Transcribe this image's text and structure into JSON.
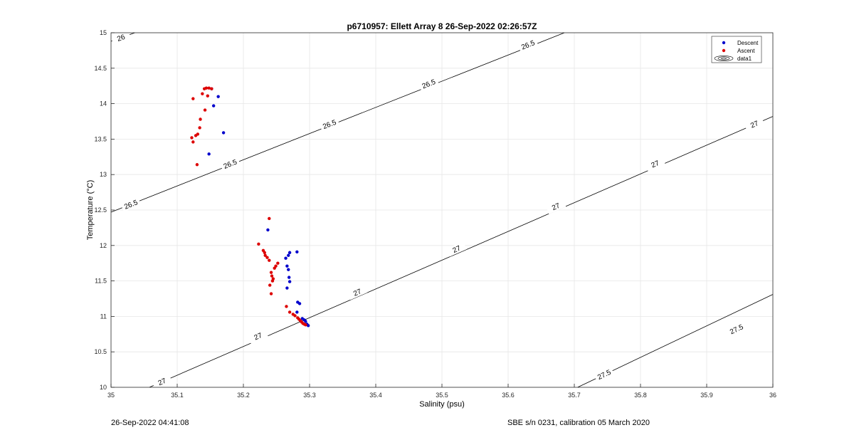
{
  "footer": {
    "left": "26-Sep-2022 04:41:08",
    "right": "SBE s/n 0231, calibration 05 March 2020"
  },
  "colors": {
    "descent": "#0000cc",
    "ascent": "#dd0000",
    "contour": "#000000",
    "grid": "#e6e6e6"
  },
  "chart_data": {
    "type": "scatter",
    "title": "p6710957: Ellett Array 8 26-Sep-2022 02:26:57Z",
    "xlabel": "Salinity (psu)",
    "ylabel": "Temperature (°C)",
    "xlim": [
      35,
      36
    ],
    "ylim": [
      10,
      15
    ],
    "grid": true,
    "legend_position": "top-right",
    "x_ticks": [
      "35",
      "35.1",
      "35.2",
      "35.3",
      "35.4",
      "35.5",
      "35.6",
      "35.7",
      "35.8",
      "35.9",
      "36"
    ],
    "y_ticks": [
      "10",
      "10.5",
      "11",
      "11.5",
      "12",
      "12.5",
      "13",
      "13.5",
      "14",
      "14.5",
      "15"
    ],
    "legend": [
      "Descent",
      "Ascent",
      "data1"
    ],
    "series": [
      {
        "name": "Descent",
        "color": "#0000cc",
        "points": [
          [
            35.152,
            14.21
          ],
          [
            35.162,
            14.1
          ],
          [
            35.155,
            13.97
          ],
          [
            35.17,
            13.59
          ],
          [
            35.148,
            13.29
          ],
          [
            35.237,
            12.22
          ],
          [
            35.281,
            11.91
          ],
          [
            35.27,
            11.9
          ],
          [
            35.268,
            11.86
          ],
          [
            35.264,
            11.82
          ],
          [
            35.266,
            11.71
          ],
          [
            35.268,
            11.66
          ],
          [
            35.269,
            11.55
          ],
          [
            35.27,
            11.49
          ],
          [
            35.266,
            11.4
          ],
          [
            35.282,
            11.2
          ],
          [
            35.285,
            11.18
          ],
          [
            35.281,
            11.06
          ],
          [
            35.289,
            10.97
          ],
          [
            35.292,
            10.95
          ],
          [
            35.294,
            10.93
          ],
          [
            35.296,
            10.89
          ],
          [
            35.298,
            10.87
          ]
        ]
      },
      {
        "name": "Ascent",
        "color": "#dd0000",
        "points": [
          [
            35.141,
            14.21
          ],
          [
            35.144,
            14.22
          ],
          [
            35.148,
            14.22
          ],
          [
            35.152,
            14.21
          ],
          [
            35.146,
            14.11
          ],
          [
            35.138,
            14.14
          ],
          [
            35.124,
            14.07
          ],
          [
            35.142,
            13.91
          ],
          [
            35.135,
            13.78
          ],
          [
            35.134,
            13.66
          ],
          [
            35.131,
            13.57
          ],
          [
            35.128,
            13.55
          ],
          [
            35.122,
            13.52
          ],
          [
            35.124,
            13.46
          ],
          [
            35.13,
            13.14
          ],
          [
            35.239,
            12.38
          ],
          [
            35.223,
            12.02
          ],
          [
            35.23,
            11.93
          ],
          [
            35.232,
            11.9
          ],
          [
            35.233,
            11.86
          ],
          [
            35.236,
            11.83
          ],
          [
            35.239,
            11.79
          ],
          [
            35.252,
            11.75
          ],
          [
            35.249,
            11.71
          ],
          [
            35.247,
            11.68
          ],
          [
            35.242,
            11.62
          ],
          [
            35.243,
            11.57
          ],
          [
            35.245,
            11.53
          ],
          [
            35.244,
            11.5
          ],
          [
            35.24,
            11.44
          ],
          [
            35.242,
            11.32
          ],
          [
            35.265,
            11.14
          ],
          [
            35.27,
            11.06
          ],
          [
            35.275,
            11.03
          ],
          [
            35.278,
            11.01
          ],
          [
            35.282,
            10.98
          ],
          [
            35.284,
            10.96
          ],
          [
            35.286,
            10.94
          ],
          [
            35.288,
            10.92
          ],
          [
            35.29,
            10.9
          ],
          [
            35.292,
            10.89
          ],
          [
            35.294,
            10.88
          ]
        ]
      }
    ],
    "contours": [
      {
        "label": "26",
        "line": [
          [
            35.0,
            14.88
          ],
          [
            35.036,
            15.0
          ]
        ],
        "label_positions": [
          [
            35.015,
            14.93
          ]
        ]
      },
      {
        "label": "26.5",
        "line": [
          [
            35.0,
            12.47
          ],
          [
            35.685,
            15.0
          ]
        ],
        "label_positions": [
          [
            35.03,
            12.58
          ],
          [
            35.18,
            13.15
          ],
          [
            35.33,
            13.71
          ],
          [
            35.48,
            14.28
          ],
          [
            35.63,
            14.83
          ]
        ]
      },
      {
        "label": "27",
        "line": [
          [
            35.058,
            10.0
          ],
          [
            36.0,
            13.82
          ]
        ],
        "label_positions": [
          [
            35.077,
            10.08
          ],
          [
            35.222,
            10.72
          ],
          [
            35.372,
            11.34
          ],
          [
            35.522,
            11.95
          ],
          [
            35.672,
            12.55
          ],
          [
            35.822,
            13.15
          ],
          [
            35.972,
            13.71
          ]
        ]
      },
      {
        "label": "27.5",
        "line": [
          [
            35.705,
            10.0
          ],
          [
            36.0,
            11.31
          ]
        ],
        "label_positions": [
          [
            35.745,
            10.18
          ],
          [
            35.945,
            10.82
          ]
        ]
      }
    ]
  }
}
